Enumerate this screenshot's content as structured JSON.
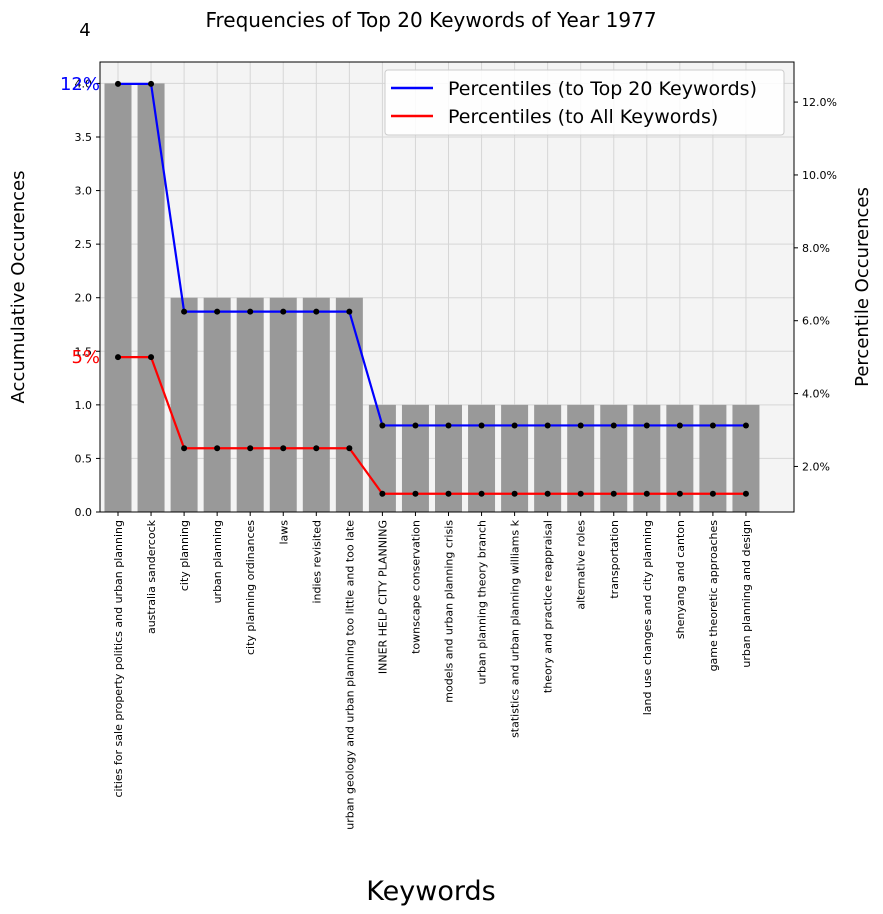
{
  "chart_data": {
    "type": "bar",
    "title": "Frequencies of Top 20 Keywords of Year 1977",
    "corner_label": "4",
    "xlabel": "Keywords",
    "ylabel": "Accumulative Occurences",
    "ylabel_right": "Percentile Occurences",
    "ylim": [
      0,
      4.2
    ],
    "yticks": [
      "0.0",
      "0.5",
      "1.0",
      "1.5",
      "2.0",
      "2.5",
      "3.0",
      "3.5",
      "4.0"
    ],
    "ylim_right": [
      0.75,
      13.1
    ],
    "yticks_right": [
      "2.0%",
      "4.0%",
      "6.0%",
      "8.0%",
      "10.0%",
      "12.0%"
    ],
    "grid": true,
    "legend_position": "top-right",
    "categories": [
      "cities for sale property politics and urban planning",
      "australia sandercock",
      "city planning",
      "urban planning",
      "city planning ordinances",
      "laws",
      "indies revisited",
      "urban geology and urban planning too little and too late",
      "INNER HELP CITY PLANNING",
      "townscape conservation",
      "models and urban planning crisis",
      "urban planning theory branch",
      "statistics and urban planning williams k",
      "theory and practice reappraisal",
      "alternative roles",
      "transportation",
      "land use changes and city planning",
      "shenyang and canton",
      "game theoretic approaches",
      "urban planning and design"
    ],
    "values": [
      4,
      4,
      2,
      2,
      2,
      2,
      2,
      2,
      1,
      1,
      1,
      1,
      1,
      1,
      1,
      1,
      1,
      1,
      1,
      1
    ],
    "series": [
      {
        "name": "Percentiles (to Top 20 Keywords)",
        "color": "#0000ff",
        "values": [
          12.5,
          12.5,
          6.25,
          6.25,
          6.25,
          6.25,
          6.25,
          6.25,
          3.125,
          3.125,
          3.125,
          3.125,
          3.125,
          3.125,
          3.125,
          3.125,
          3.125,
          3.125,
          3.125,
          3.125
        ],
        "annotation": "12%"
      },
      {
        "name": "Percentiles (to All Keywords)",
        "color": "#ff0000",
        "values": [
          5.0,
          5.0,
          2.5,
          2.5,
          2.5,
          2.5,
          2.5,
          2.5,
          1.25,
          1.25,
          1.25,
          1.25,
          1.25,
          1.25,
          1.25,
          1.25,
          1.25,
          1.25,
          1.25,
          1.25
        ],
        "annotation": "5%"
      }
    ],
    "bar_color": "#999999",
    "plot_background": "#f4f4f4"
  }
}
